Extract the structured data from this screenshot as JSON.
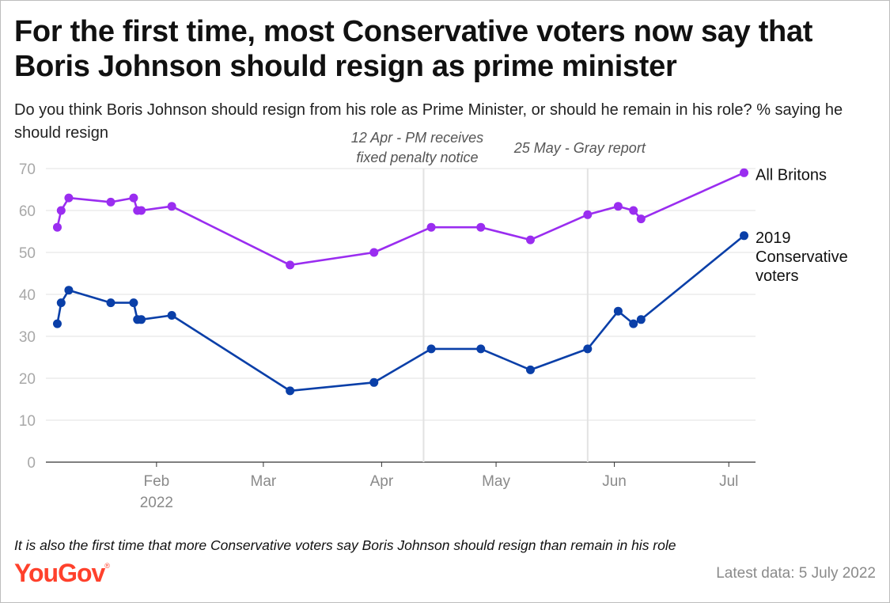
{
  "title": "For the first time, most Conservative voters now say that Boris Johnson should resign as prime minister",
  "subtitle": "Do you think Boris Johnson should resign from his role as Prime Minister, or should he remain in his role? % saying he should resign",
  "footnote": "It is also the first time that more Conservative voters say Boris Johnson should resign than remain in his role",
  "brand": {
    "name": "YouGov",
    "mark": "®",
    "color": "#ff412c"
  },
  "latest_data": "Latest data: 5 July 2022",
  "chart_data": {
    "type": "line",
    "title": "",
    "xlabel": "",
    "ylabel": "",
    "ylim": [
      0,
      70
    ],
    "yticks": [
      0,
      10,
      20,
      30,
      40,
      50,
      60,
      70
    ],
    "xlim": [
      "2022-01-03",
      "2022-07-08"
    ],
    "xticks": [
      {
        "date": "2022-02-01",
        "label": "Feb",
        "sublabel": "2022"
      },
      {
        "date": "2022-03-01",
        "label": "Mar",
        "sublabel": ""
      },
      {
        "date": "2022-04-01",
        "label": "Apr",
        "sublabel": ""
      },
      {
        "date": "2022-05-01",
        "label": "May",
        "sublabel": ""
      },
      {
        "date": "2022-06-01",
        "label": "Jun",
        "sublabel": ""
      },
      {
        "date": "2022-07-01",
        "label": "Jul",
        "sublabel": ""
      }
    ],
    "grid": true,
    "annotations": [
      {
        "date": "2022-04-12",
        "lines": [
          "12 Apr - PM receives",
          "fixed penalty notice"
        ]
      },
      {
        "date": "2022-05-25",
        "lines": [
          "25 May - Gray report"
        ]
      }
    ],
    "x": [
      "2022-01-06",
      "2022-01-07",
      "2022-01-09",
      "2022-01-20",
      "2022-01-26",
      "2022-01-27",
      "2022-01-28",
      "2022-02-05",
      "2022-03-08",
      "2022-03-30",
      "2022-04-14",
      "2022-04-27",
      "2022-05-10",
      "2022-05-25",
      "2022-06-02",
      "2022-06-06",
      "2022-06-08",
      "2022-07-05"
    ],
    "series": [
      {
        "name": "All Britons",
        "color": "#9a2df0",
        "label_lines": [
          "All Britons"
        ],
        "values": [
          56,
          60,
          63,
          62,
          63,
          60,
          60,
          61,
          47,
          50,
          56,
          56,
          53,
          59,
          61,
          60,
          58,
          69
        ]
      },
      {
        "name": "2019 Conservative voters",
        "color": "#0a3fa8",
        "label_lines": [
          "2019",
          "Conservative",
          "voters"
        ],
        "values": [
          33,
          38,
          41,
          38,
          38,
          34,
          34,
          35,
          17,
          19,
          27,
          27,
          22,
          27,
          36,
          33,
          34,
          54
        ]
      }
    ]
  }
}
